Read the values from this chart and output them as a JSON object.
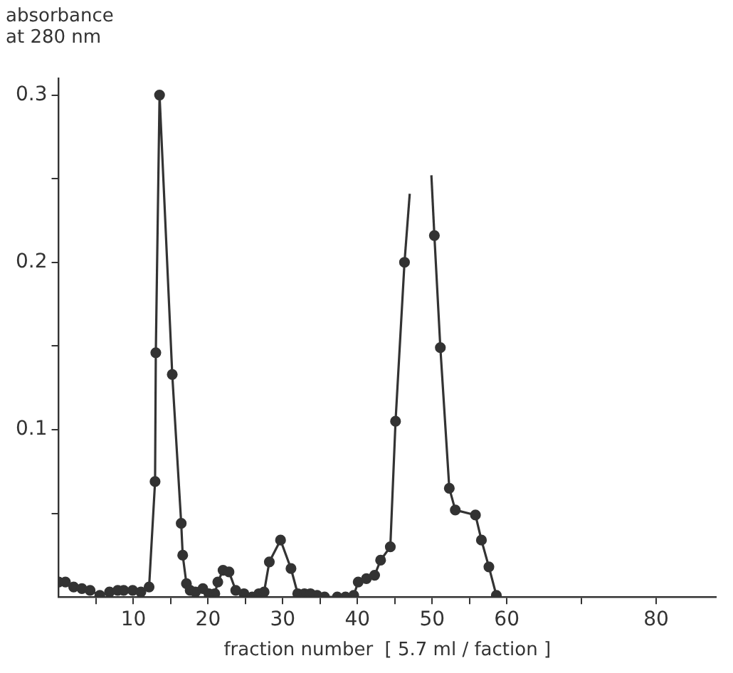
{
  "chart_data": {
    "type": "line",
    "ylabel": "absorbance\nat 280 nm",
    "xlabel": "fraction number  [ 5.7 ml / faction ]",
    "marker": "circle",
    "grid": false,
    "legend": false,
    "xlim": [
      0,
      88
    ],
    "ylim": [
      0,
      0.31
    ],
    "xticks": [
      {
        "value": 5,
        "label": null
      },
      10,
      {
        "value": 15,
        "label": null
      },
      20,
      {
        "value": 25,
        "label": null
      },
      30,
      {
        "value": 35,
        "label": null
      },
      40,
      {
        "value": 45,
        "label": null
      },
      50,
      {
        "value": 55,
        "label": null
      },
      60,
      {
        "value": 70,
        "label": null
      },
      80
    ],
    "yticks": [
      {
        "value": 0.05,
        "label": null
      },
      0.1,
      {
        "value": 0.15,
        "label": null
      },
      0.2,
      {
        "value": 0.25,
        "label": null
      },
      0.3
    ],
    "series": [
      {
        "color": "#333333",
        "x": [
          0,
          0.9,
          2,
          3.1,
          4.2,
          5.5,
          6.8,
          7.9,
          8.7,
          9.9,
          11,
          12.1,
          12.9,
          13,
          13.5,
          15.2,
          16.4,
          16.6,
          17.1,
          17.6,
          18.3,
          19.3,
          20.1,
          20.9,
          21.3,
          22,
          22.8,
          23.7,
          24.8,
          25.9,
          26.8,
          27.5,
          28.2,
          29.7,
          31.1,
          32,
          32.9,
          33.7,
          34.6,
          35.6,
          37.3,
          38.4,
          39.5,
          40.1,
          41.2,
          42.3,
          43.1,
          44.4,
          45.1,
          46.3,
          48,
          50.3,
          51.1,
          52.3,
          53.1,
          55.8,
          56.6,
          57.6,
          58.6
        ],
        "values": [
          0.009,
          0.009,
          0.006,
          0.005,
          0.004,
          0.001,
          0.003,
          0.004,
          0.004,
          0.004,
          0.003,
          0.006,
          0.069,
          0.146,
          0.3,
          0.133,
          0.044,
          0.025,
          0.008,
          0.004,
          0.003,
          0.005,
          0.002,
          0.002,
          0.009,
          0.016,
          0.015,
          0.004,
          0.002,
          0,
          0.002,
          0.003,
          0.021,
          0.034,
          0.017,
          0.002,
          0.002,
          0.002,
          0.001,
          0,
          0,
          0,
          0.001,
          0.009,
          0.011,
          0.013,
          0.022,
          0.03,
          0.105,
          0.2,
          null,
          0.216,
          0.149,
          0.065,
          0.052,
          0.049,
          0.034,
          0.018,
          0.001
        ]
      },
      {
        "color": "#333333",
        "marker": "none",
        "x": [
          46.3,
          47
        ],
        "values": [
          0.2,
          0.241
        ]
      },
      {
        "color": "#333333",
        "marker": "none",
        "x": [
          49.9,
          50.3
        ],
        "values": [
          0.252,
          0.216
        ]
      }
    ]
  }
}
